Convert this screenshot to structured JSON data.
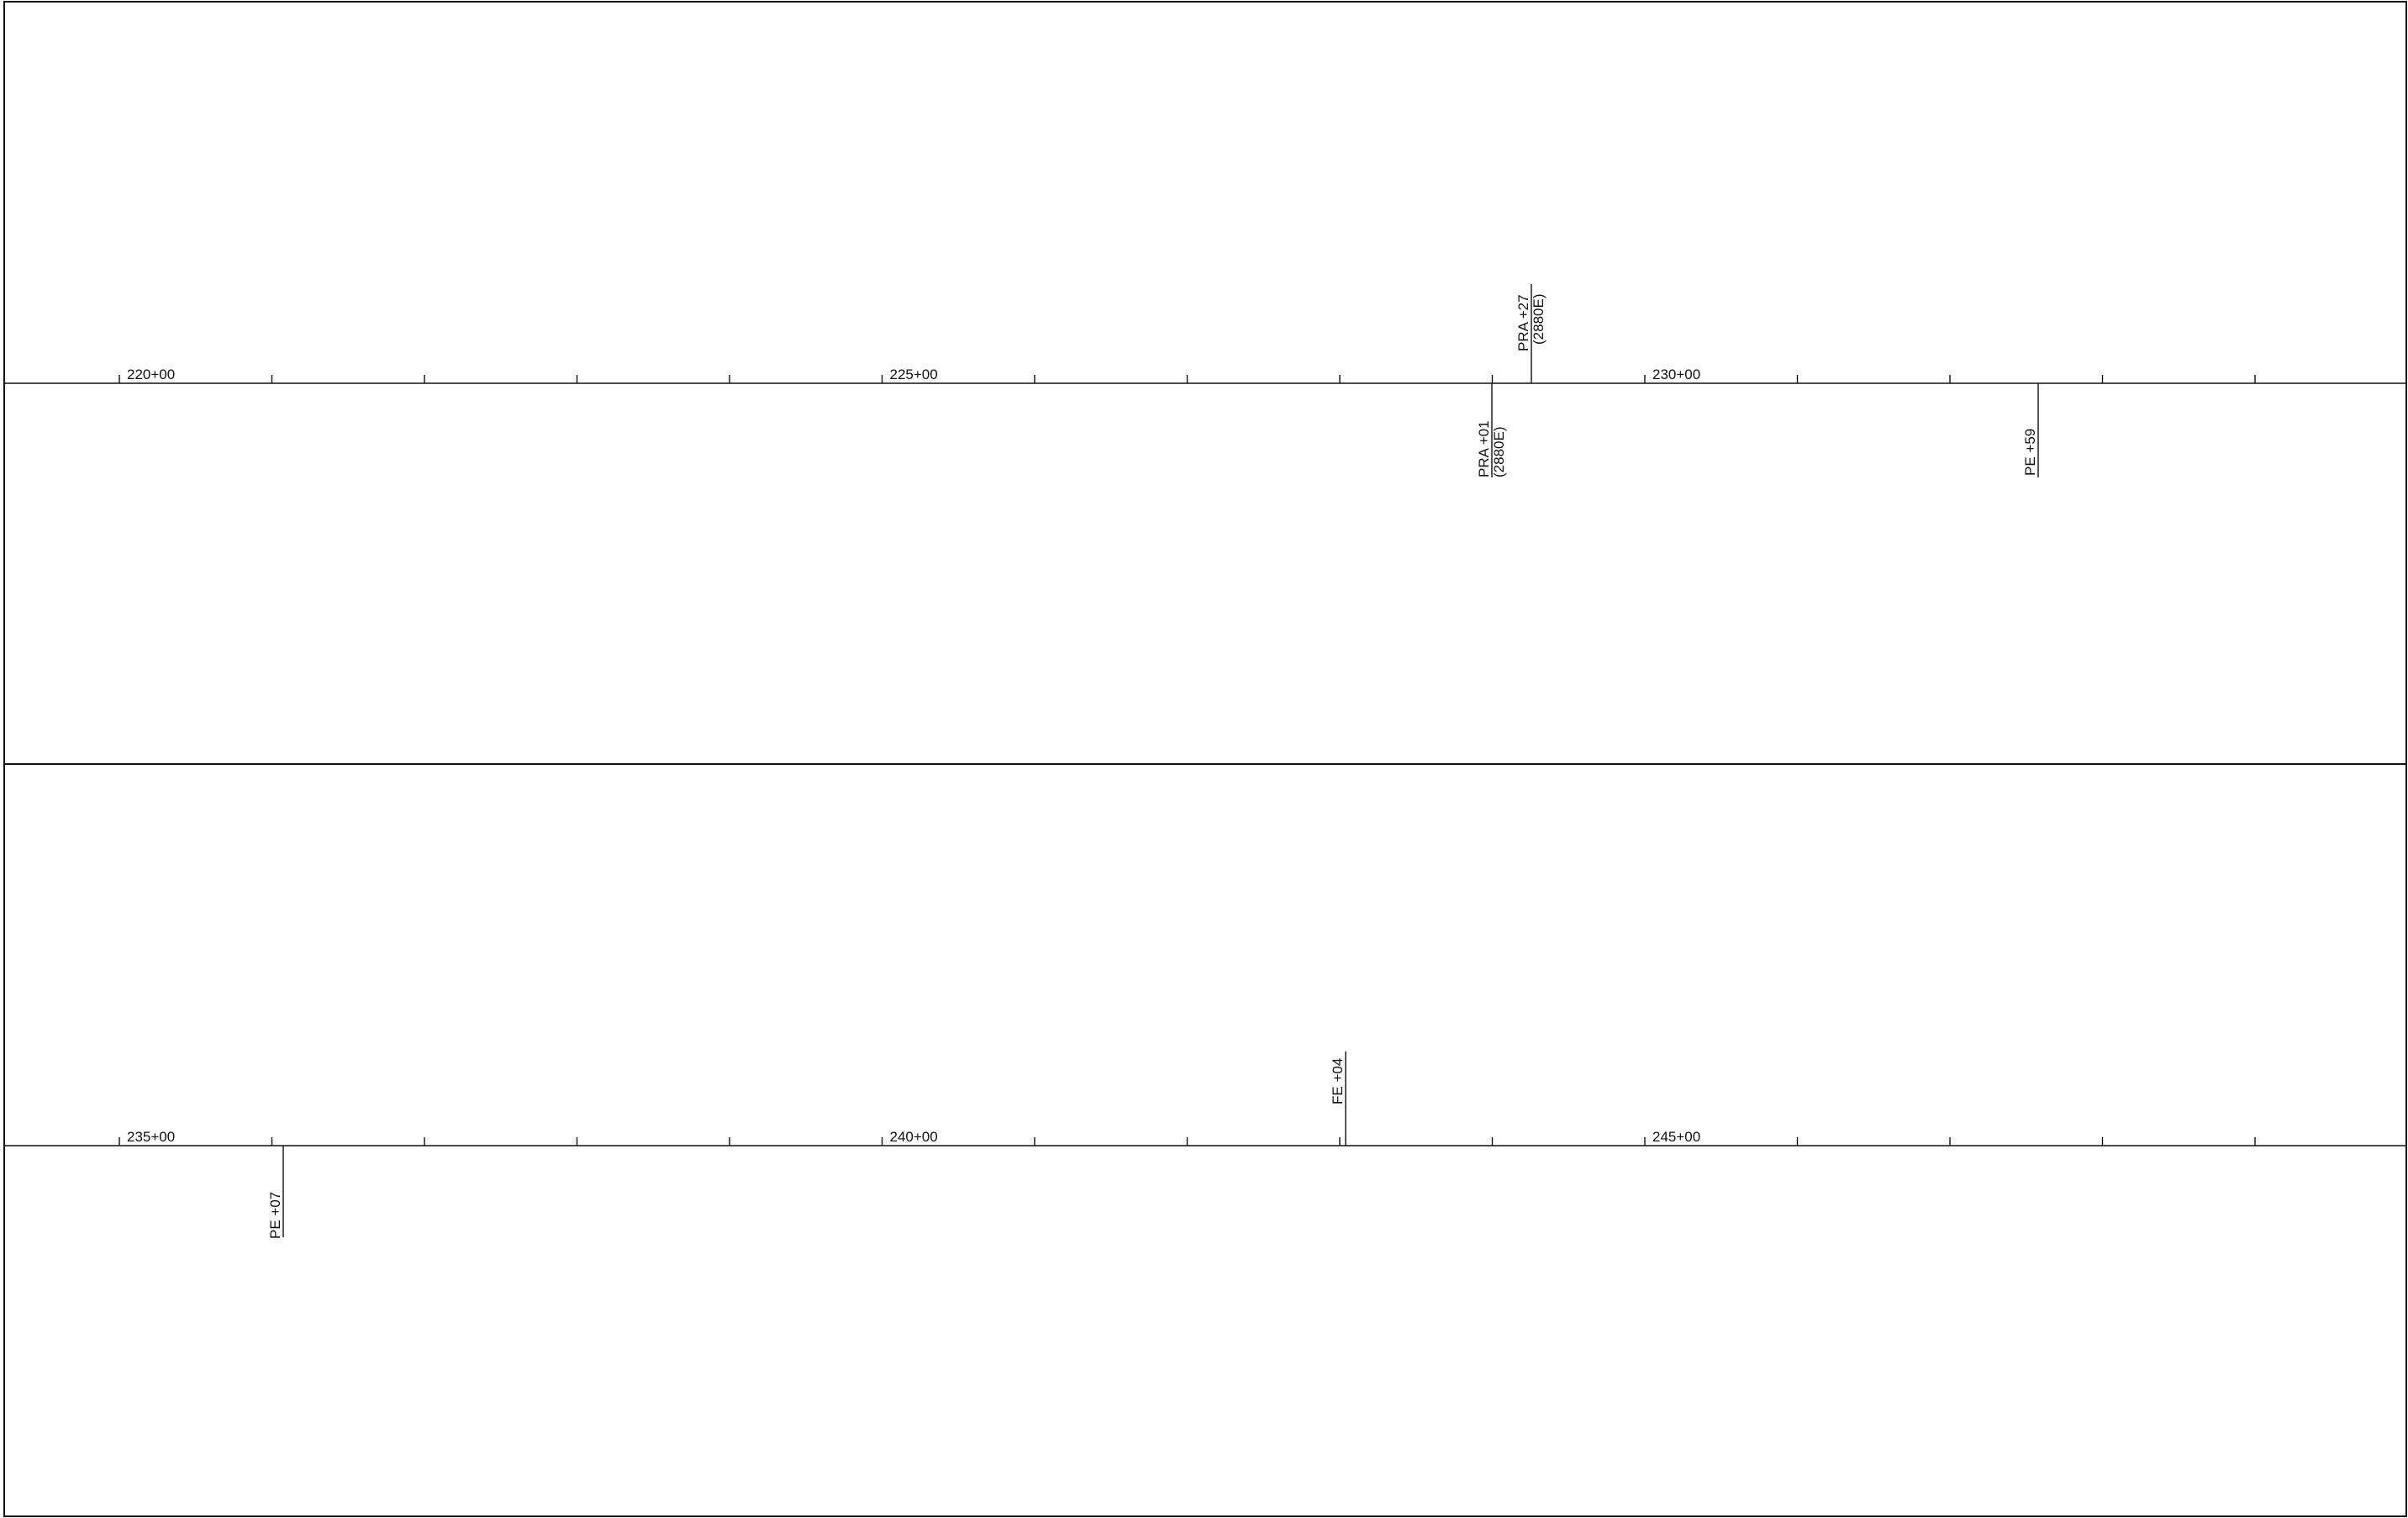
{
  "drawing": {
    "line_color": "#111111",
    "background": "#ffffff",
    "panels": [
      {
        "name": "panel-top",
        "stations": [
          {
            "label": "220+00",
            "major": true
          },
          {
            "label": "",
            "major": false
          },
          {
            "label": "",
            "major": false
          },
          {
            "label": "",
            "major": false
          },
          {
            "label": "",
            "major": false
          },
          {
            "label": "225+00",
            "major": true
          },
          {
            "label": "",
            "major": false
          },
          {
            "label": "",
            "major": false
          },
          {
            "label": "",
            "major": false
          },
          {
            "label": "",
            "major": false
          },
          {
            "label": "230+00",
            "major": true
          },
          {
            "label": "",
            "major": false
          },
          {
            "label": "",
            "major": false
          },
          {
            "label": "",
            "major": false
          },
          {
            "label": "",
            "major": false
          }
        ],
        "callouts": [
          {
            "text": "PRA +27",
            "sub": "(2880E)",
            "side": "above"
          },
          {
            "text": "PRA +01",
            "sub": "(2880E)",
            "side": "below"
          },
          {
            "text": "PE +59",
            "sub": "",
            "side": "below"
          }
        ]
      },
      {
        "name": "panel-bottom",
        "stations": [
          {
            "label": "235+00",
            "major": true
          },
          {
            "label": "",
            "major": false
          },
          {
            "label": "",
            "major": false
          },
          {
            "label": "",
            "major": false
          },
          {
            "label": "",
            "major": false
          },
          {
            "label": "240+00",
            "major": true
          },
          {
            "label": "",
            "major": false
          },
          {
            "label": "",
            "major": false
          },
          {
            "label": "",
            "major": false
          },
          {
            "label": "",
            "major": false
          },
          {
            "label": "245+00",
            "major": true
          },
          {
            "label": "",
            "major": false
          },
          {
            "label": "",
            "major": false
          },
          {
            "label": "",
            "major": false
          },
          {
            "label": "",
            "major": false
          }
        ],
        "callouts": [
          {
            "text": "FE +04",
            "sub": "",
            "side": "above"
          },
          {
            "text": "PE +07",
            "sub": "",
            "side": "below"
          }
        ]
      }
    ]
  }
}
